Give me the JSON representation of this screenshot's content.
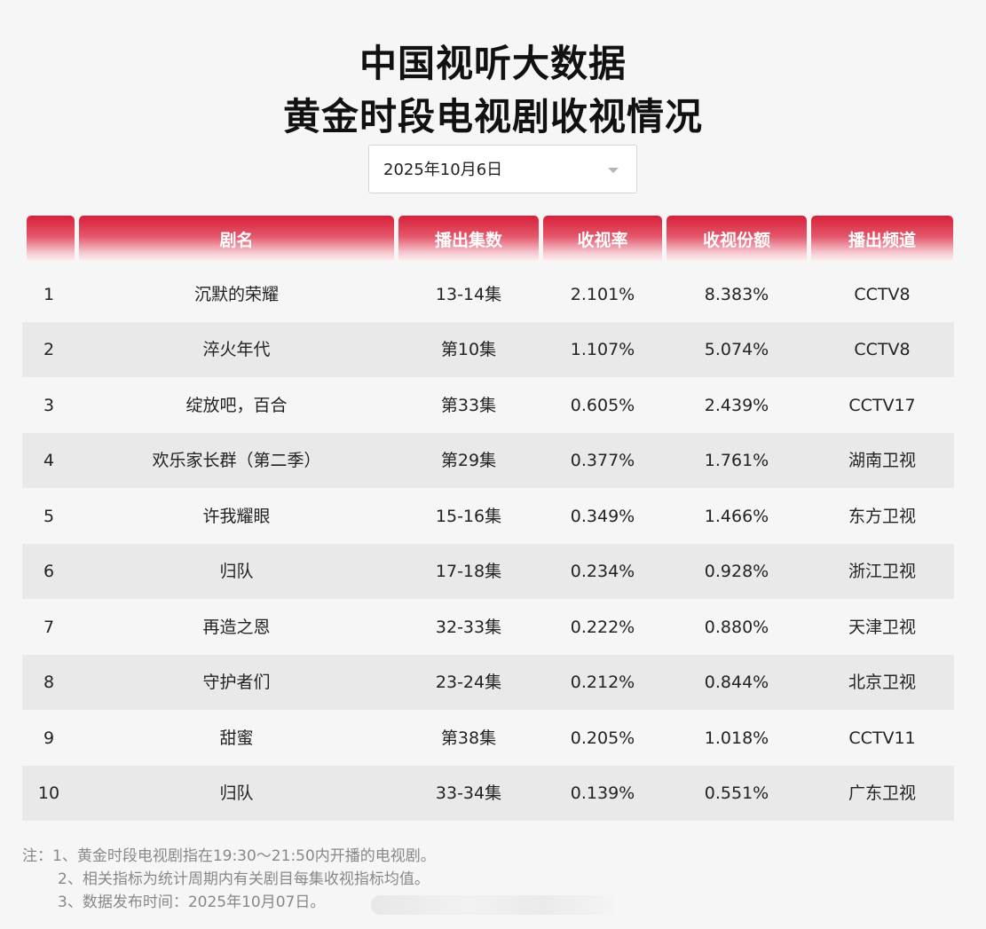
{
  "title": {
    "line1": "中国视听大数据",
    "line2": "黄金时段电视剧收视情况"
  },
  "date_select": {
    "value": "2025年10月6日",
    "icon": "caret-down-icon"
  },
  "table": {
    "headers": [
      "",
      "剧名",
      "播出集数",
      "收视率",
      "收视份额",
      "播出频道"
    ],
    "rows": [
      {
        "rank": "1",
        "name": "沉默的荣耀",
        "episodes": "13-14集",
        "rating": "2.101%",
        "share": "8.383%",
        "channel": "CCTV8"
      },
      {
        "rank": "2",
        "name": "淬火年代",
        "episodes": "第10集",
        "rating": "1.107%",
        "share": "5.074%",
        "channel": "CCTV8"
      },
      {
        "rank": "3",
        "name": "绽放吧，百合",
        "episodes": "第33集",
        "rating": "0.605%",
        "share": "2.439%",
        "channel": "CCTV17"
      },
      {
        "rank": "4",
        "name": "欢乐家长群（第二季）",
        "episodes": "第29集",
        "rating": "0.377%",
        "share": "1.761%",
        "channel": "湖南卫视"
      },
      {
        "rank": "5",
        "name": "许我耀眼",
        "episodes": "15-16集",
        "rating": "0.349%",
        "share": "1.466%",
        "channel": "东方卫视"
      },
      {
        "rank": "6",
        "name": "归队",
        "episodes": "17-18集",
        "rating": "0.234%",
        "share": "0.928%",
        "channel": "浙江卫视"
      },
      {
        "rank": "7",
        "name": "再造之恩",
        "episodes": "32-33集",
        "rating": "0.222%",
        "share": "0.880%",
        "channel": "天津卫视"
      },
      {
        "rank": "8",
        "name": "守护者们",
        "episodes": "23-24集",
        "rating": "0.212%",
        "share": "0.844%",
        "channel": "北京卫视"
      },
      {
        "rank": "9",
        "name": "甜蜜",
        "episodes": "第38集",
        "rating": "0.205%",
        "share": "1.018%",
        "channel": "CCTV11"
      },
      {
        "rank": "10",
        "name": "归队",
        "episodes": "33-34集",
        "rating": "0.139%",
        "share": "0.551%",
        "channel": "广东卫视"
      }
    ]
  },
  "notes": [
    "注：1、黄金时段电视剧指在19:30～21:50内开播的电视剧。",
    "2、相关指标为统计周期内有关剧目每集收视指标均值。",
    "3、数据发布时间：2025年10月07日。"
  ],
  "colors": {
    "header_red": "#d8213a",
    "row_alt": "#e9e9e9",
    "background": "#f6f6f6"
  }
}
